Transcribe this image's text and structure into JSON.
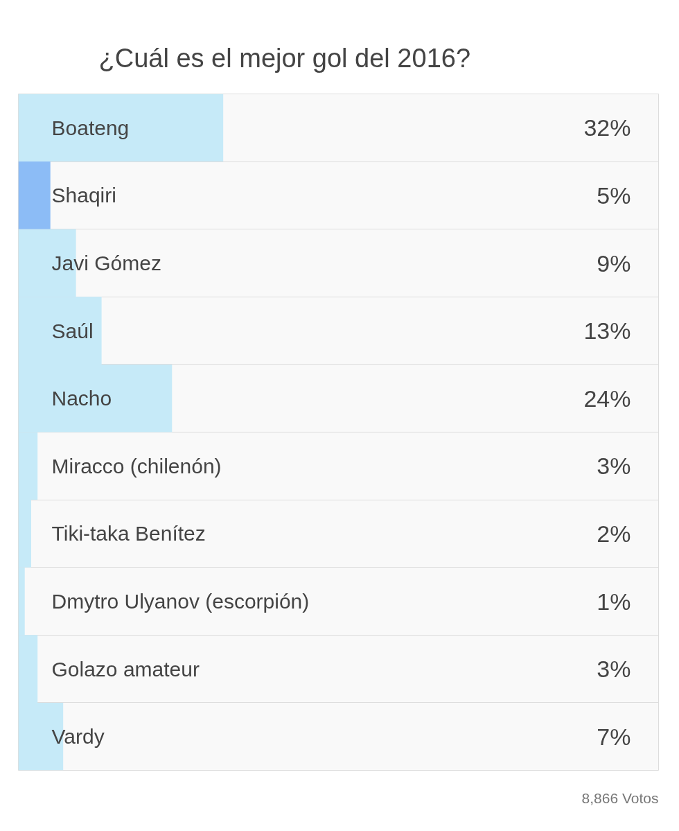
{
  "chart_data": {
    "type": "bar",
    "orientation": "horizontal",
    "title": "¿Cuál es el mejor gol del 2016?",
    "categories": [
      "Boateng",
      "Shaqiri",
      "Javi Gómez",
      "Saúl",
      "Nacho",
      "Miracco (chilenón)",
      "Tiki-taka Benítez",
      "Dmytro Ulyanov (escorpión)",
      "Golazo amateur",
      "Vardy"
    ],
    "values": [
      32,
      5,
      9,
      13,
      24,
      3,
      2,
      1,
      3,
      7
    ],
    "colors": [
      "#c6eaf8",
      "#8cbcf6",
      "#c6eaf8",
      "#c6eaf8",
      "#c6eaf8",
      "#c6eaf8",
      "#c6eaf8",
      "#c6eaf8",
      "#c6eaf8",
      "#c6eaf8"
    ],
    "value_labels": [
      "32%",
      "5%",
      "9%",
      "13%",
      "24%",
      "3%",
      "2%",
      "1%",
      "3%",
      "7%"
    ],
    "xlim": [
      0,
      100
    ],
    "grid": "y",
    "tick_labels": "y",
    "annotations": [
      "8,866 Votos"
    ]
  }
}
